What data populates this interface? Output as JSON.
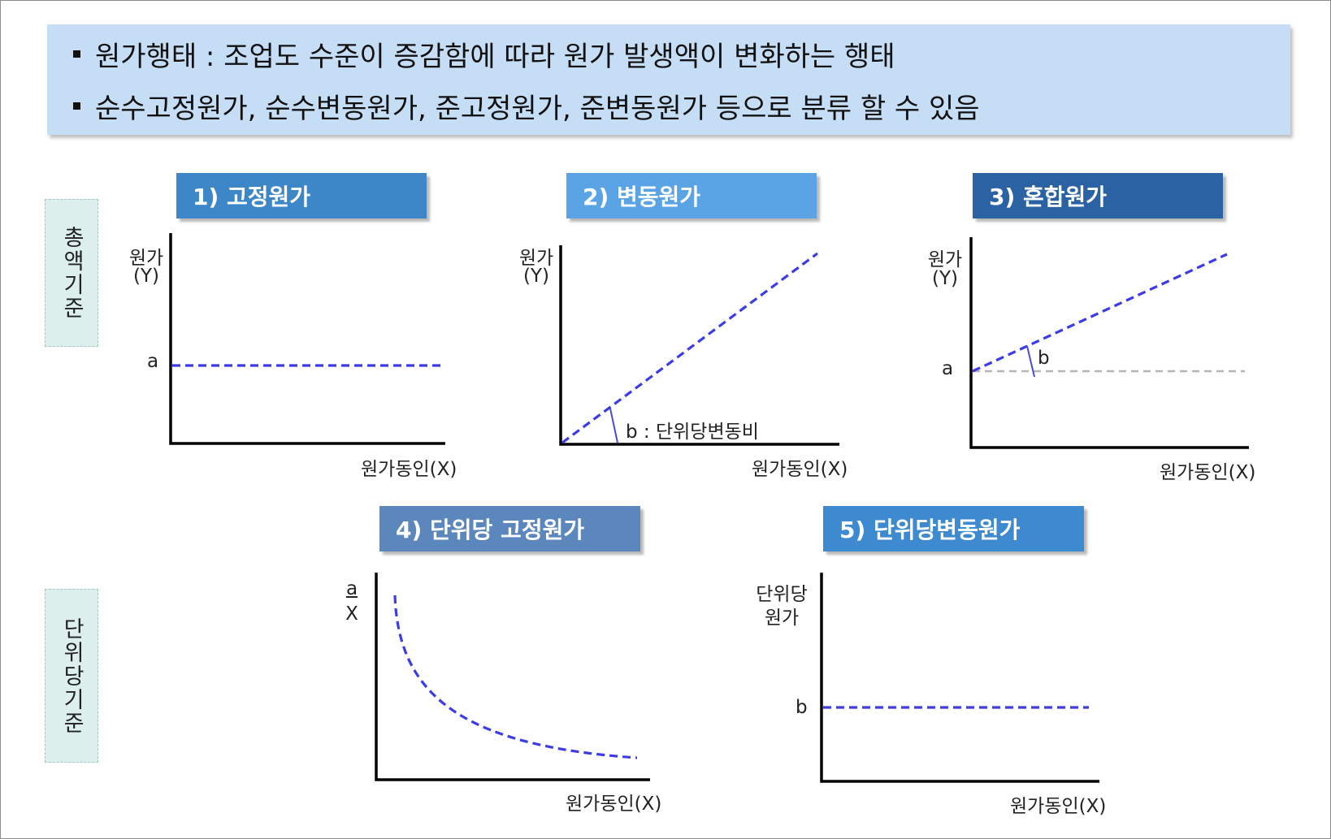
{
  "header": {
    "bullets": [
      "원가행태 : 조업도 수준이 증감함에 따라 원가 발생액이 변화하는 행태",
      "순수고정원가, 순수변동원가, 준고정원가, 준변동원가 등으로 분류 할 수 있음"
    ]
  },
  "side_labels": {
    "total_basis": "총액기준",
    "unit_basis": "단위당기준"
  },
  "colors": {
    "header_bg": "#c6def5",
    "title_1": "#3d86c8",
    "title_2": "#5aa4e6",
    "title_3": "#2a62a3",
    "title_4": "#5b87bd",
    "title_5": "#3e8ad0",
    "line": "#3c3ce6"
  },
  "panels": [
    {
      "title": "1) 고정원가",
      "ylabel_1": "원가",
      "ylabel_2": "(Y)",
      "xlabel": "원가동인(X)",
      "y_marker": "a"
    },
    {
      "title": "2) 변동원가",
      "ylabel_1": "원가",
      "ylabel_2": "(Y)",
      "xlabel": "원가동인(X)",
      "slope_note": "b : 단위당변동비"
    },
    {
      "title": "3) 혼합원가",
      "ylabel_1": "원가",
      "ylabel_2": "(Y)",
      "xlabel": "원가동인(X)",
      "y_marker": "a",
      "slope_marker": "b"
    },
    {
      "title": "4) 단위당 고정원가",
      "ylabel_num": "a",
      "ylabel_den": "X",
      "xlabel": "원가동인(X)"
    },
    {
      "title": "5) 단위당변동원가",
      "ylabel_1": "단위당",
      "ylabel_2": "원가",
      "xlabel": "원가동인(X)",
      "y_marker": "b"
    }
  ]
}
